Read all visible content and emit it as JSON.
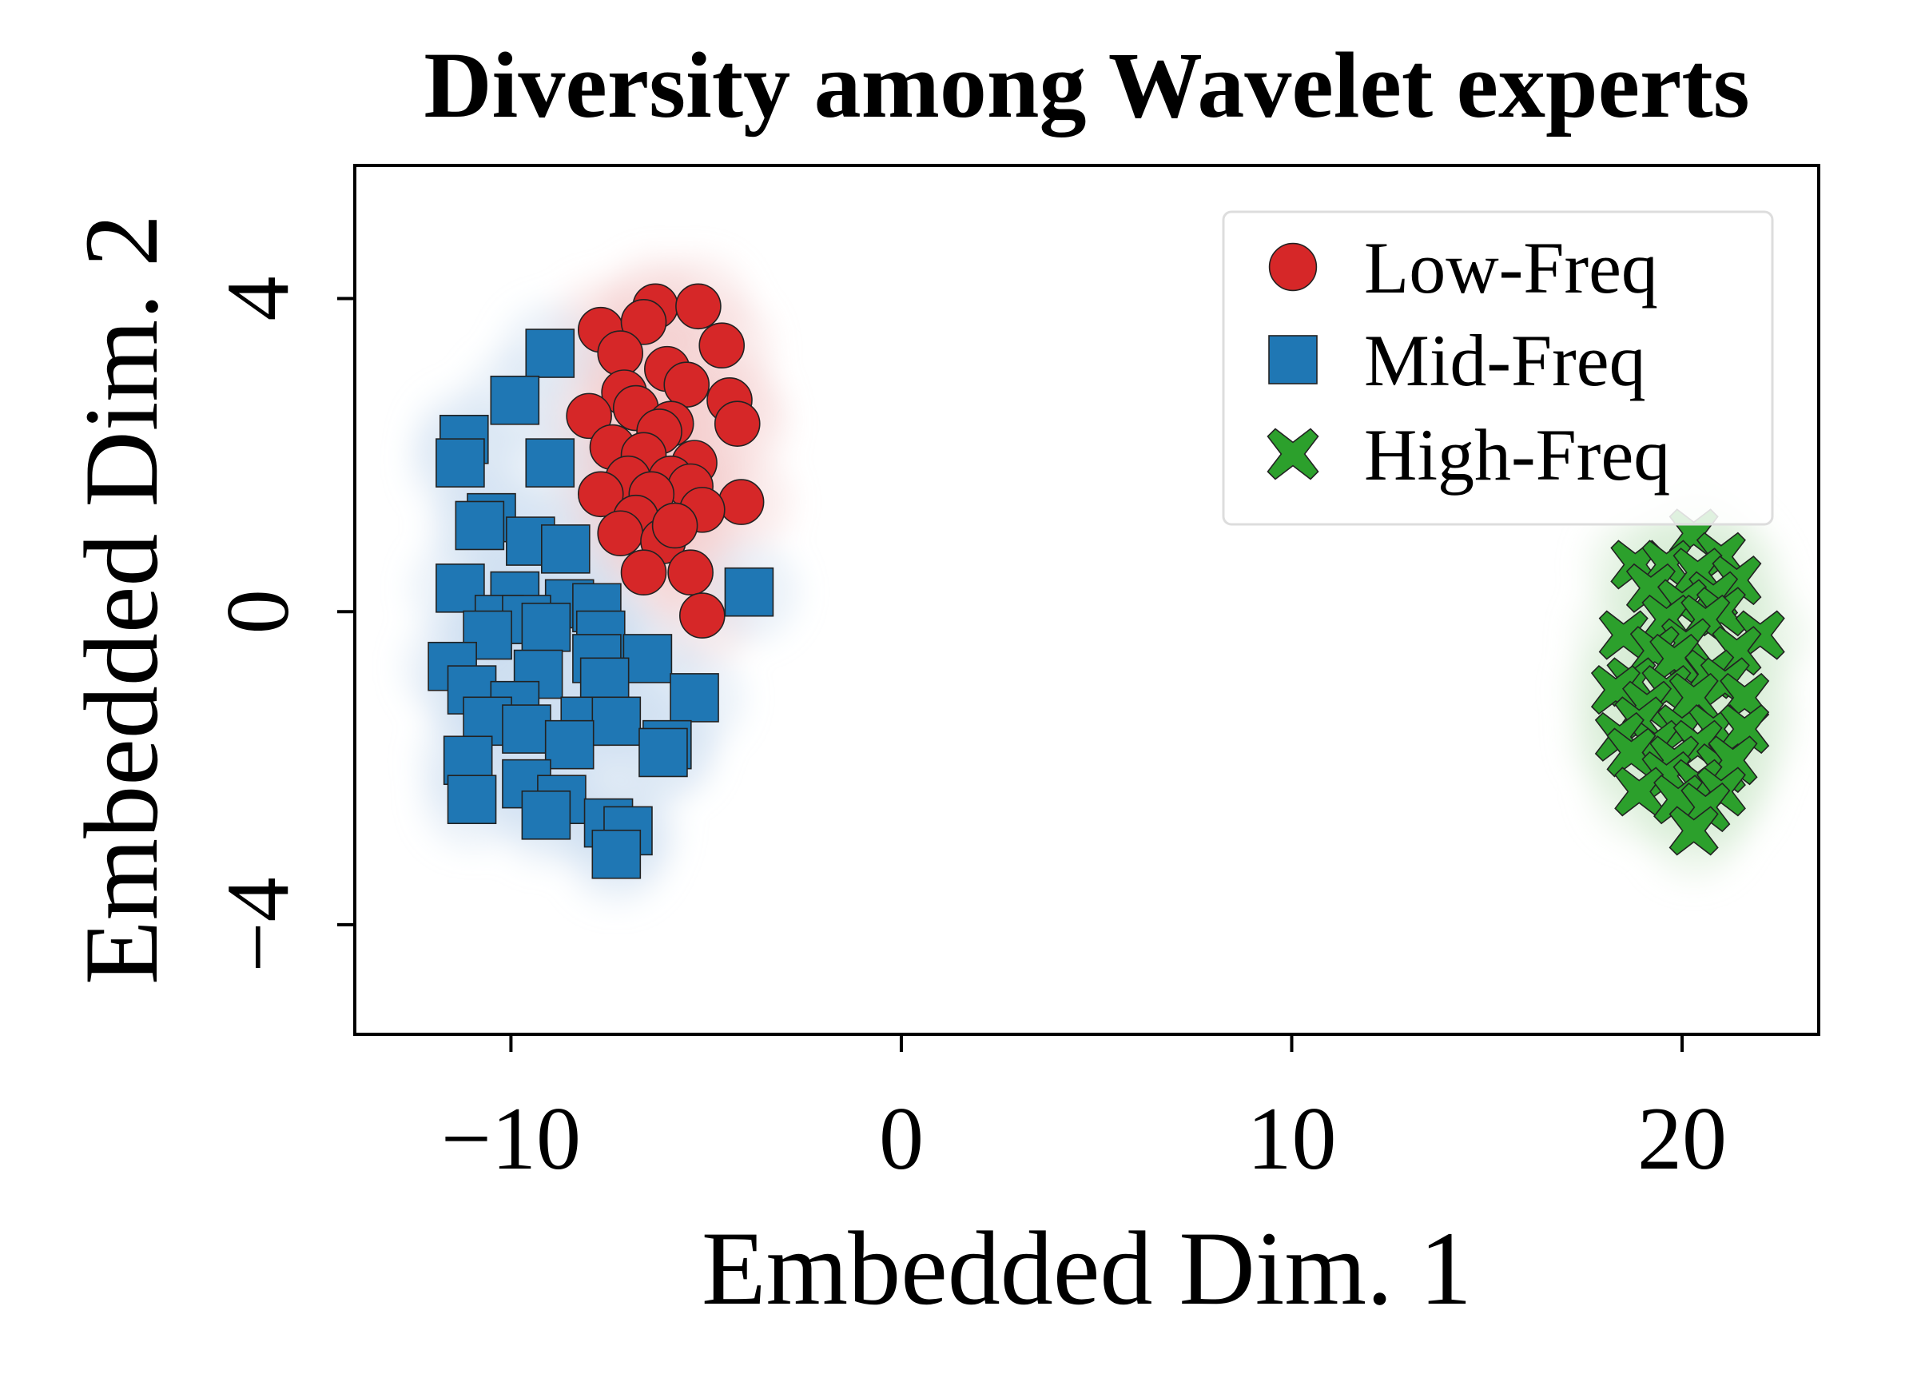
{
  "chart_data": {
    "type": "scatter",
    "title": "Diversity among Wavelet experts",
    "xlabel": "Embedded Dim. 1",
    "ylabel": "Embedded Dim. 2",
    "xlim": [
      -14,
      23.5
    ],
    "ylim": [
      -5.4,
      5.7
    ],
    "xticks": [
      -10,
      0,
      10,
      20
    ],
    "xtick_labels": [
      "−10",
      "0",
      "10",
      "20"
    ],
    "yticks": [
      4,
      0,
      -4
    ],
    "ytick_labels": [
      "4",
      "0",
      "−4"
    ],
    "grid": false,
    "legend_position": "top-right",
    "density_contours": true,
    "series": [
      {
        "name": "Low-Freq",
        "marker": "circle",
        "color": "#d62728",
        "points": [
          [
            -7.7,
            3.6
          ],
          [
            -6.3,
            3.9
          ],
          [
            -5.2,
            3.9
          ],
          [
            -6.6,
            3.7
          ],
          [
            -4.6,
            3.4
          ],
          [
            -7.2,
            3.3
          ],
          [
            -6.0,
            3.1
          ],
          [
            -7.1,
            2.8
          ],
          [
            -5.5,
            2.9
          ],
          [
            -4.4,
            2.7
          ],
          [
            -8.0,
            2.5
          ],
          [
            -6.8,
            2.6
          ],
          [
            -5.9,
            2.4
          ],
          [
            -4.2,
            2.4
          ],
          [
            -7.4,
            2.1
          ],
          [
            -6.2,
            2.3
          ],
          [
            -6.6,
            2.0
          ],
          [
            -5.3,
            1.9
          ],
          [
            -7.0,
            1.7
          ],
          [
            -5.9,
            1.7
          ],
          [
            -5.4,
            1.6
          ],
          [
            -7.7,
            1.5
          ],
          [
            -6.4,
            1.5
          ],
          [
            -4.1,
            1.4
          ],
          [
            -6.8,
            1.2
          ],
          [
            -5.1,
            1.3
          ],
          [
            -7.2,
            1.0
          ],
          [
            -6.1,
            0.9
          ],
          [
            -5.8,
            1.1
          ],
          [
            -6.6,
            0.5
          ],
          [
            -5.4,
            0.5
          ],
          [
            -5.1,
            -0.05
          ]
        ]
      },
      {
        "name": "Mid-Freq",
        "marker": "square",
        "color": "#1f77b4",
        "points": [
          [
            -9.0,
            3.3
          ],
          [
            -9.9,
            2.7
          ],
          [
            -11.2,
            2.2
          ],
          [
            -11.3,
            1.9
          ],
          [
            -9.0,
            1.9
          ],
          [
            -10.5,
            1.2
          ],
          [
            -10.8,
            1.1
          ],
          [
            -9.5,
            0.9
          ],
          [
            -8.6,
            0.8
          ],
          [
            -11.3,
            0.3
          ],
          [
            -9.9,
            0.2
          ],
          [
            -8.5,
            0.1
          ],
          [
            -7.8,
            0.05
          ],
          [
            -3.9,
            0.25
          ],
          [
            -10.3,
            -0.1
          ],
          [
            -9.6,
            -0.1
          ],
          [
            -9.1,
            -0.2
          ],
          [
            -7.7,
            -0.3
          ],
          [
            -10.6,
            -0.3
          ],
          [
            -11.5,
            -0.7
          ],
          [
            -7.8,
            -0.6
          ],
          [
            -6.5,
            -0.6
          ],
          [
            -11.0,
            -1.0
          ],
          [
            -9.3,
            -0.8
          ],
          [
            -7.6,
            -0.9
          ],
          [
            -9.9,
            -1.2
          ],
          [
            -5.3,
            -1.1
          ],
          [
            -10.6,
            -1.4
          ],
          [
            -8.1,
            -1.4
          ],
          [
            -7.3,
            -1.4
          ],
          [
            -9.6,
            -1.5
          ],
          [
            -11.1,
            -1.9
          ],
          [
            -8.5,
            -1.7
          ],
          [
            -6.0,
            -1.7
          ],
          [
            -6.1,
            -1.8
          ],
          [
            -9.6,
            -2.2
          ],
          [
            -11.0,
            -2.4
          ],
          [
            -8.7,
            -2.4
          ],
          [
            -9.1,
            -2.6
          ],
          [
            -7.5,
            -2.7
          ],
          [
            -7.0,
            -2.8
          ],
          [
            -7.3,
            -3.1
          ]
        ]
      },
      {
        "name": "High-Freq",
        "marker": "x",
        "color": "#2ca02c",
        "points": [
          [
            20.3,
            1.0
          ],
          [
            18.8,
            0.6
          ],
          [
            19.6,
            0.6
          ],
          [
            21.0,
            0.7
          ],
          [
            20.4,
            0.5
          ],
          [
            21.4,
            0.4
          ],
          [
            19.2,
            0.3
          ],
          [
            20.8,
            0.2
          ],
          [
            20.0,
            0.1
          ],
          [
            21.0,
            0.0
          ],
          [
            19.6,
            -0.1
          ],
          [
            20.6,
            -0.1
          ],
          [
            18.5,
            -0.3
          ],
          [
            22.0,
            -0.3
          ],
          [
            20.1,
            -0.4
          ],
          [
            21.4,
            -0.5
          ],
          [
            19.3,
            -0.5
          ],
          [
            19.8,
            -0.6
          ],
          [
            20.7,
            -0.8
          ],
          [
            18.7,
            -0.9
          ],
          [
            21.1,
            -0.9
          ],
          [
            18.3,
            -1.0
          ],
          [
            19.6,
            -1.0
          ],
          [
            20.3,
            -1.1
          ],
          [
            21.6,
            -1.1
          ],
          [
            19.1,
            -1.2
          ],
          [
            18.9,
            -1.4
          ],
          [
            20.0,
            -1.5
          ],
          [
            20.8,
            -1.5
          ],
          [
            19.3,
            -1.7
          ],
          [
            21.6,
            -1.5
          ],
          [
            18.4,
            -1.6
          ],
          [
            20.4,
            -1.7
          ],
          [
            19.8,
            -1.9
          ],
          [
            18.7,
            -1.8
          ],
          [
            21.0,
            -2.0
          ],
          [
            21.3,
            -1.9
          ],
          [
            19.6,
            -2.1
          ],
          [
            20.4,
            -2.2
          ],
          [
            18.9,
            -2.3
          ],
          [
            21.0,
            -2.3
          ],
          [
            19.9,
            -2.4
          ],
          [
            20.6,
            -2.5
          ],
          [
            20.3,
            -2.8
          ]
        ]
      }
    ]
  }
}
